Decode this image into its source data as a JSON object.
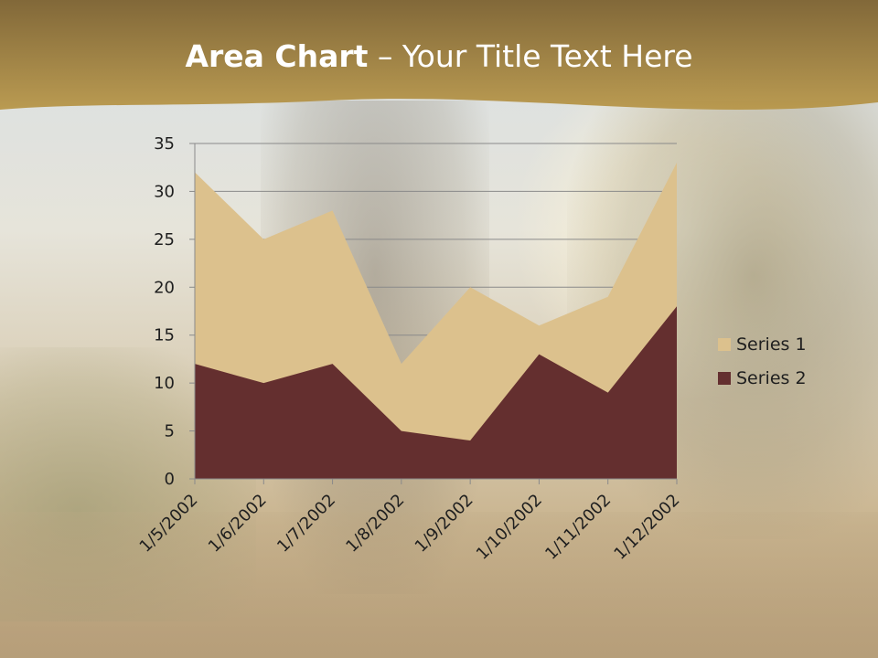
{
  "slide": {
    "title_bold": "Area Chart",
    "title_rest": " – Your Title Text Here"
  },
  "colors": {
    "header": "#a88a3c",
    "series1": "#dcc18d",
    "series2": "#642f2f",
    "grid": "#8a8a8a"
  },
  "chart_data": {
    "type": "area",
    "categories": [
      "1/5/2002",
      "1/6/2002",
      "1/7/2002",
      "1/8/2002",
      "1/9/2002",
      "1/10/2002",
      "1/11/2002",
      "1/12/2002"
    ],
    "series": [
      {
        "name": "Series 1",
        "values": [
          32,
          25,
          28,
          12,
          20,
          16,
          19,
          33
        ]
      },
      {
        "name": "Series 2",
        "values": [
          12,
          10,
          12,
          5,
          4,
          13,
          9,
          18
        ]
      }
    ],
    "ylim": [
      0,
      35
    ],
    "yticks": [
      "0",
      "5",
      "10",
      "15",
      "20",
      "25",
      "30",
      "35"
    ],
    "grid": true,
    "legend": "right"
  }
}
